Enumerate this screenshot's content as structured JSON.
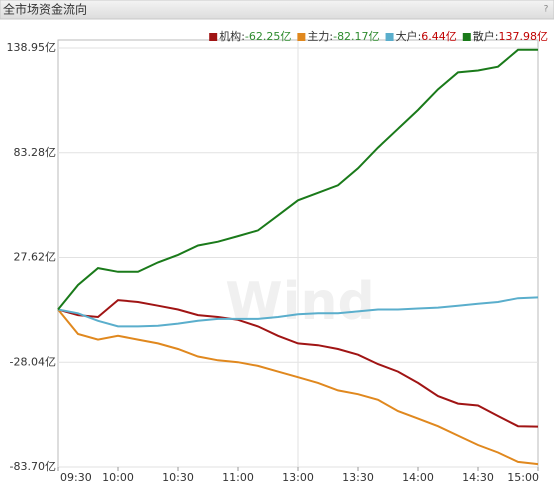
{
  "header": {
    "title": "全市场资金流向",
    "help": "?"
  },
  "chart_data": {
    "type": "line",
    "watermark": "Wind",
    "legend_separator": ":",
    "positive_color": "#c00000",
    "negative_color": "#2e8b2e",
    "categories": [
      "09:30",
      null,
      null,
      "10:00",
      null,
      null,
      "10:30",
      null,
      null,
      "11:00",
      null,
      null,
      "13:00",
      null,
      null,
      "13:30",
      null,
      null,
      "14:00",
      null,
      null,
      "14:30",
      null,
      null,
      "15:00"
    ],
    "ylim": [
      -83.7,
      138.95
    ],
    "yticks": [
      {
        "value": -83.7,
        "label": "-83.70亿"
      },
      {
        "value": -28.04,
        "label": "-28.04亿"
      },
      {
        "value": 27.62,
        "label": "27.62亿"
      },
      {
        "value": 83.28,
        "label": "83.28亿"
      },
      {
        "value": 138.95,
        "label": "138.95亿"
      }
    ],
    "grid": true,
    "series": [
      {
        "name": "机构",
        "color": "#a01414",
        "values": [
          0,
          -3,
          -4,
          5,
          4,
          2,
          0,
          -3,
          -4,
          -5.5,
          -9,
          -14,
          -18,
          -19,
          -21,
          -24,
          -29,
          -33,
          -39,
          -46,
          -50,
          -51,
          -56.6,
          -62,
          -62.25
        ],
        "value_labels": [
          null,
          null,
          null,
          null,
          null,
          null,
          null,
          null,
          null,
          null,
          null,
          null,
          null,
          null,
          null,
          null,
          null,
          null,
          null,
          null,
          null,
          null,
          null,
          null,
          "-62.25亿"
        ]
      },
      {
        "name": "主力",
        "color": "#e0881e",
        "values": [
          0,
          -13,
          -16,
          -14,
          -16,
          -18,
          -21,
          -25,
          -27,
          -28,
          -30,
          -33,
          -36,
          -39,
          -43,
          -45,
          -48,
          -54,
          -58,
          -62,
          -67,
          -72,
          -76,
          -81,
          -82.17
        ],
        "value_labels": [
          null,
          null,
          null,
          null,
          null,
          null,
          null,
          null,
          null,
          null,
          null,
          null,
          null,
          null,
          null,
          null,
          null,
          null,
          null,
          null,
          null,
          null,
          null,
          null,
          "-82.17亿"
        ]
      },
      {
        "name": "大户",
        "color": "#5aaecc",
        "values": [
          0,
          -2,
          -6,
          -9,
          -9,
          -8.6,
          -7.5,
          -6,
          -5,
          -5,
          -5,
          -4,
          -2.5,
          -2,
          -2,
          -1,
          0,
          0,
          0.5,
          1,
          2,
          3,
          4,
          6,
          6.44
        ],
        "value_labels": [
          null,
          null,
          null,
          null,
          null,
          null,
          null,
          null,
          null,
          null,
          null,
          null,
          null,
          null,
          null,
          null,
          null,
          null,
          null,
          null,
          null,
          null,
          null,
          null,
          "6.44亿"
        ]
      },
      {
        "name": "散户",
        "color": "#1a7a1a",
        "values": [
          0,
          13,
          22,
          20,
          20,
          25,
          29,
          34,
          36,
          39,
          42,
          50,
          58,
          62,
          66,
          75,
          86,
          96,
          106,
          117,
          126,
          127,
          129,
          138,
          137.98
        ],
        "value_labels": [
          null,
          null,
          null,
          null,
          null,
          null,
          null,
          null,
          null,
          null,
          null,
          null,
          null,
          null,
          null,
          null,
          null,
          null,
          null,
          null,
          null,
          null,
          null,
          null,
          "137.98亿"
        ]
      }
    ]
  }
}
